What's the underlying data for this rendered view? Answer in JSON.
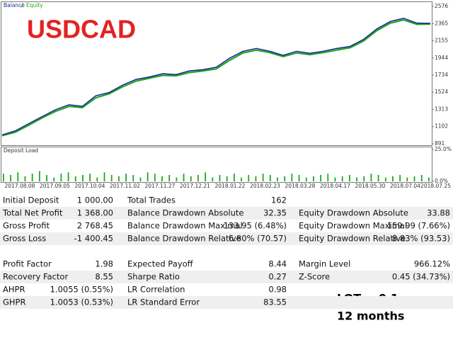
{
  "chart_data": [
    {
      "type": "line",
      "title": "USDCAD",
      "series": [
        {
          "name": "Balance",
          "color": "#1b2f8f",
          "values": [
            1000,
            1050,
            1140,
            1225,
            1310,
            1370,
            1350,
            1480,
            1520,
            1610,
            1680,
            1710,
            1750,
            1740,
            1785,
            1800,
            1830,
            1940,
            2025,
            2060,
            2025,
            1975,
            2025,
            2000,
            2025,
            2060,
            2085,
            2170,
            2300,
            2390,
            2430,
            2370,
            2368
          ]
        },
        {
          "name": "Equity",
          "color": "#1fa51f",
          "values": [
            990,
            1035,
            1120,
            1210,
            1290,
            1350,
            1335,
            1455,
            1505,
            1590,
            1660,
            1695,
            1730,
            1725,
            1765,
            1785,
            1810,
            1915,
            2005,
            2040,
            2010,
            1960,
            2005,
            1985,
            2010,
            2040,
            2070,
            2150,
            2280,
            2370,
            2410,
            2355,
            2360
          ]
        }
      ],
      "ylim": [
        874,
        2628
      ],
      "yticks": [
        891,
        1102,
        1313,
        1524,
        1734,
        1944,
        2155,
        2365,
        2576
      ]
    },
    {
      "type": "bar",
      "title": "Deposit Load",
      "color": "#1fa51f",
      "values": [
        6,
        5,
        7,
        4,
        6,
        8,
        5,
        3,
        6,
        7,
        4,
        5,
        6,
        3,
        7,
        5,
        4,
        6,
        5,
        3,
        7,
        6,
        4,
        5,
        3,
        6,
        4,
        5,
        7,
        3,
        5,
        4,
        6,
        3,
        5,
        4,
        6,
        5,
        3,
        4,
        6,
        5,
        3,
        4,
        5,
        6,
        3,
        4,
        5,
        3,
        4,
        6,
        5,
        3,
        4,
        5,
        3,
        4,
        5,
        3
      ],
      "ylim": [
        0,
        25
      ],
      "yticks": [
        {
          "value": 25,
          "label": "25.0%"
        },
        {
          "value": 0,
          "label": "0.0%"
        }
      ],
      "x_labels": [
        "2017.08.08",
        "2017.09.05",
        "2017.10.04",
        "2017.11.02",
        "2017.11.27",
        "2017.12.21",
        "2018.01.22",
        "2018.02.23",
        "2018.03.28",
        "2018.04.17",
        "2018.05.30",
        "2018.07.04",
        "2018.07.25"
      ]
    }
  ],
  "table": {
    "rows": [
      [
        [
          "Initial Deposit",
          "1 000.00"
        ],
        [
          "Total Trades",
          "162"
        ]
      ],
      [
        [
          "Total Net Profit",
          "1 368.00"
        ],
        [
          "Balance Drawdown Absolute",
          "32.35"
        ],
        [
          "Equity Drawdown Absolute",
          "33.88"
        ]
      ],
      [
        [
          "Gross Profit",
          "2 768.45"
        ],
        [
          "Balance Drawdown Maximal",
          "133.95 (6.48%)"
        ],
        [
          "Equity Drawdown Maximal",
          "159.99 (7.66%)"
        ]
      ],
      [
        [
          "Gross Loss",
          "-1 400.45"
        ],
        [
          "Balance Drawdown Relative",
          "6.80% (70.57)"
        ],
        [
          "Equity Drawdown Relative",
          "8.83% (93.53)"
        ]
      ],
      [
        [
          "Profit Factor",
          "1.98"
        ],
        [
          "Expected Payoff",
          "8.44"
        ],
        [
          "Margin Level",
          "966.12%"
        ]
      ],
      [
        [
          "Recovery Factor",
          "8.55"
        ],
        [
          "Sharpe Ratio",
          "0.27"
        ],
        [
          "Z-Score",
          "0.45 (34.73%)"
        ]
      ],
      [
        [
          "AHPR",
          "1.0055 (0.55%)"
        ],
        [
          "LR Correlation",
          "0.98"
        ]
      ],
      [
        [
          "GHPR",
          "1.0053 (0.53%)"
        ],
        [
          "LR Standard Error",
          "83.55"
        ]
      ]
    ]
  },
  "annotations": [
    "LOT = 0.1",
    "12 months"
  ]
}
